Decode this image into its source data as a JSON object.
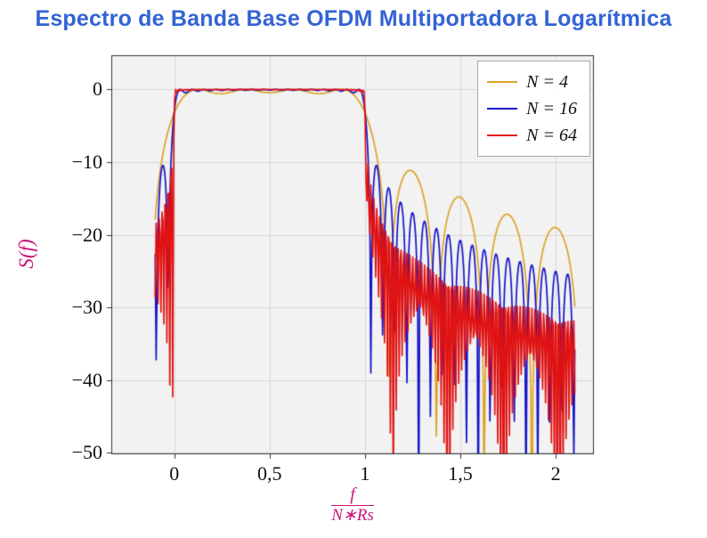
{
  "page": {
    "background": "#ffffff"
  },
  "chart_data": {
    "type": "line",
    "title": "Espectro de Banda Base OFDM Multiportadora Logarítmica",
    "title_color": "#3363d4",
    "axis_label_color": "#cc1478",
    "ylabel": "S(f)",
    "xlabel": {
      "numerator": "f",
      "denominator": "N∗Rs"
    },
    "xlim": [
      -0.33,
      2.2
    ],
    "ylim": [
      -50.2,
      4.7
    ],
    "x_data_range": [
      -0.1,
      2.1
    ],
    "samples_per_series": 431,
    "grid": true,
    "plot_background": "#f2f2f2",
    "grid_color": "#d9d9d9",
    "axis_border_color": "#333333",
    "xticks": [
      {
        "v": 0,
        "label": "0"
      },
      {
        "v": 0.5,
        "label": "0,5"
      },
      {
        "v": 1,
        "label": "1"
      },
      {
        "v": 1.5,
        "label": "1,5"
      },
      {
        "v": 2,
        "label": "2"
      }
    ],
    "yticks": [
      {
        "v": 0,
        "label": "0"
      },
      {
        "v": -10,
        "label": "−10"
      },
      {
        "v": -20,
        "label": "−20"
      },
      {
        "v": -30,
        "label": "−30"
      },
      {
        "v": -40,
        "label": "−40"
      },
      {
        "v": -50,
        "label": "−50"
      }
    ],
    "legend_position": "top-right",
    "series": [
      {
        "label": "N = 4",
        "N": 4,
        "color": "#dda328"
      },
      {
        "label": "N = 16",
        "N": 16,
        "color": "#1414cc"
      },
      {
        "label": "N = 64",
        "N": 64,
        "color": "#e01212"
      }
    ],
    "model": "S_N(x) = 10*log10( sum_{k=0}^{N-1} sinc^2( N*x - (k+0.5) ) ), sinc(t)=sin(pi*t)/(pi*t), x = f/(N*Rs); flat ~0 dB for 0<x<1, sidelobes decaying beyond band edges; first sidelobe ~ -11 dB, envelope at x=2: N=4 ~ -20 dB, N=16 ~ -25 dB, N=64 ~ -31 dB"
  }
}
